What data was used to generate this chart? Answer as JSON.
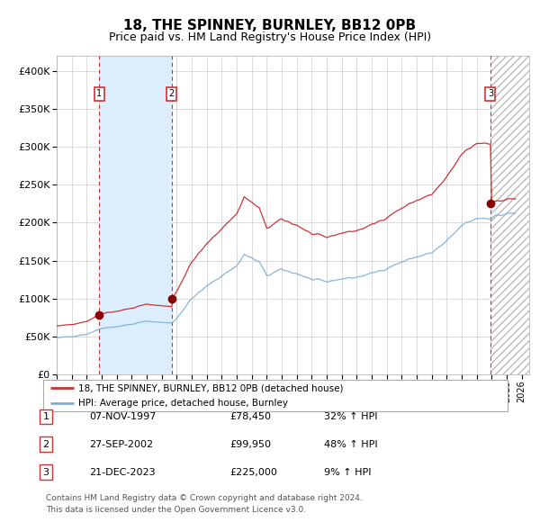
{
  "title": "18, THE SPINNEY, BURNLEY, BB12 0PB",
  "subtitle": "Price paid vs. HM Land Registry's House Price Index (HPI)",
  "legend_line1": "18, THE SPINNEY, BURNLEY, BB12 0PB (detached house)",
  "legend_line2": "HPI: Average price, detached house, Burnley",
  "sale1_label": "07-NOV-1997",
  "sale1_price": 78450,
  "sale1_pct": "32% ↑ HPI",
  "sale2_label": "27-SEP-2002",
  "sale2_price": 99950,
  "sale2_pct": "48% ↑ HPI",
  "sale3_label": "21-DEC-2023",
  "sale3_price": 225000,
  "sale3_pct": "9% ↑ HPI",
  "hpi_line_color": "#7aadd4",
  "price_line_color": "#cc3333",
  "marker_color": "#880000",
  "shade_color": "#ddeeff",
  "background_color": "#ffffff",
  "grid_color": "#cccccc",
  "xmin": 1995.0,
  "xmax": 2026.5,
  "ymin": 0,
  "ymax": 420000,
  "ylabel_ticks": [
    0,
    50000,
    100000,
    150000,
    200000,
    250000,
    300000,
    350000,
    400000
  ],
  "footer_line1": "Contains HM Land Registry data © Crown copyright and database right 2024.",
  "footer_line2": "This data is licensed under the Open Government Licence v3.0."
}
